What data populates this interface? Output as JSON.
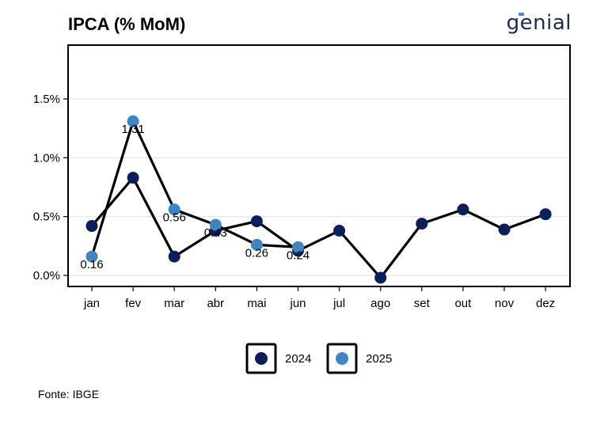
{
  "header": {
    "title": "IPCA (% MoM)",
    "logo_text": "genial"
  },
  "footer": {
    "source": "Fonte: IBGE"
  },
  "chart_data": {
    "type": "line",
    "categories": [
      "jan",
      "fev",
      "mar",
      "abr",
      "mai",
      "jun",
      "jul",
      "ago",
      "set",
      "out",
      "nov",
      "dez"
    ],
    "yticks": [
      "0.0%",
      "0.5%",
      "1.0%",
      "1.5%"
    ],
    "ylim": [
      -0.1,
      1.95
    ],
    "grid": true,
    "legend_position": "bottom",
    "series": [
      {
        "name": "2024",
        "color": "#0b1f5e",
        "values": [
          0.42,
          0.83,
          0.16,
          0.38,
          0.46,
          0.21,
          0.38,
          -0.02,
          0.44,
          0.56,
          0.39,
          0.52
        ],
        "labels": []
      },
      {
        "name": "2025",
        "color": "#3d86c6",
        "values": [
          0.16,
          1.31,
          0.56,
          0.43,
          0.26,
          0.24,
          null,
          null,
          null,
          null,
          null,
          null
        ],
        "labels": [
          "0.16",
          "1.31",
          "0.56",
          "0.43",
          "0.26",
          "0.24"
        ]
      }
    ]
  }
}
